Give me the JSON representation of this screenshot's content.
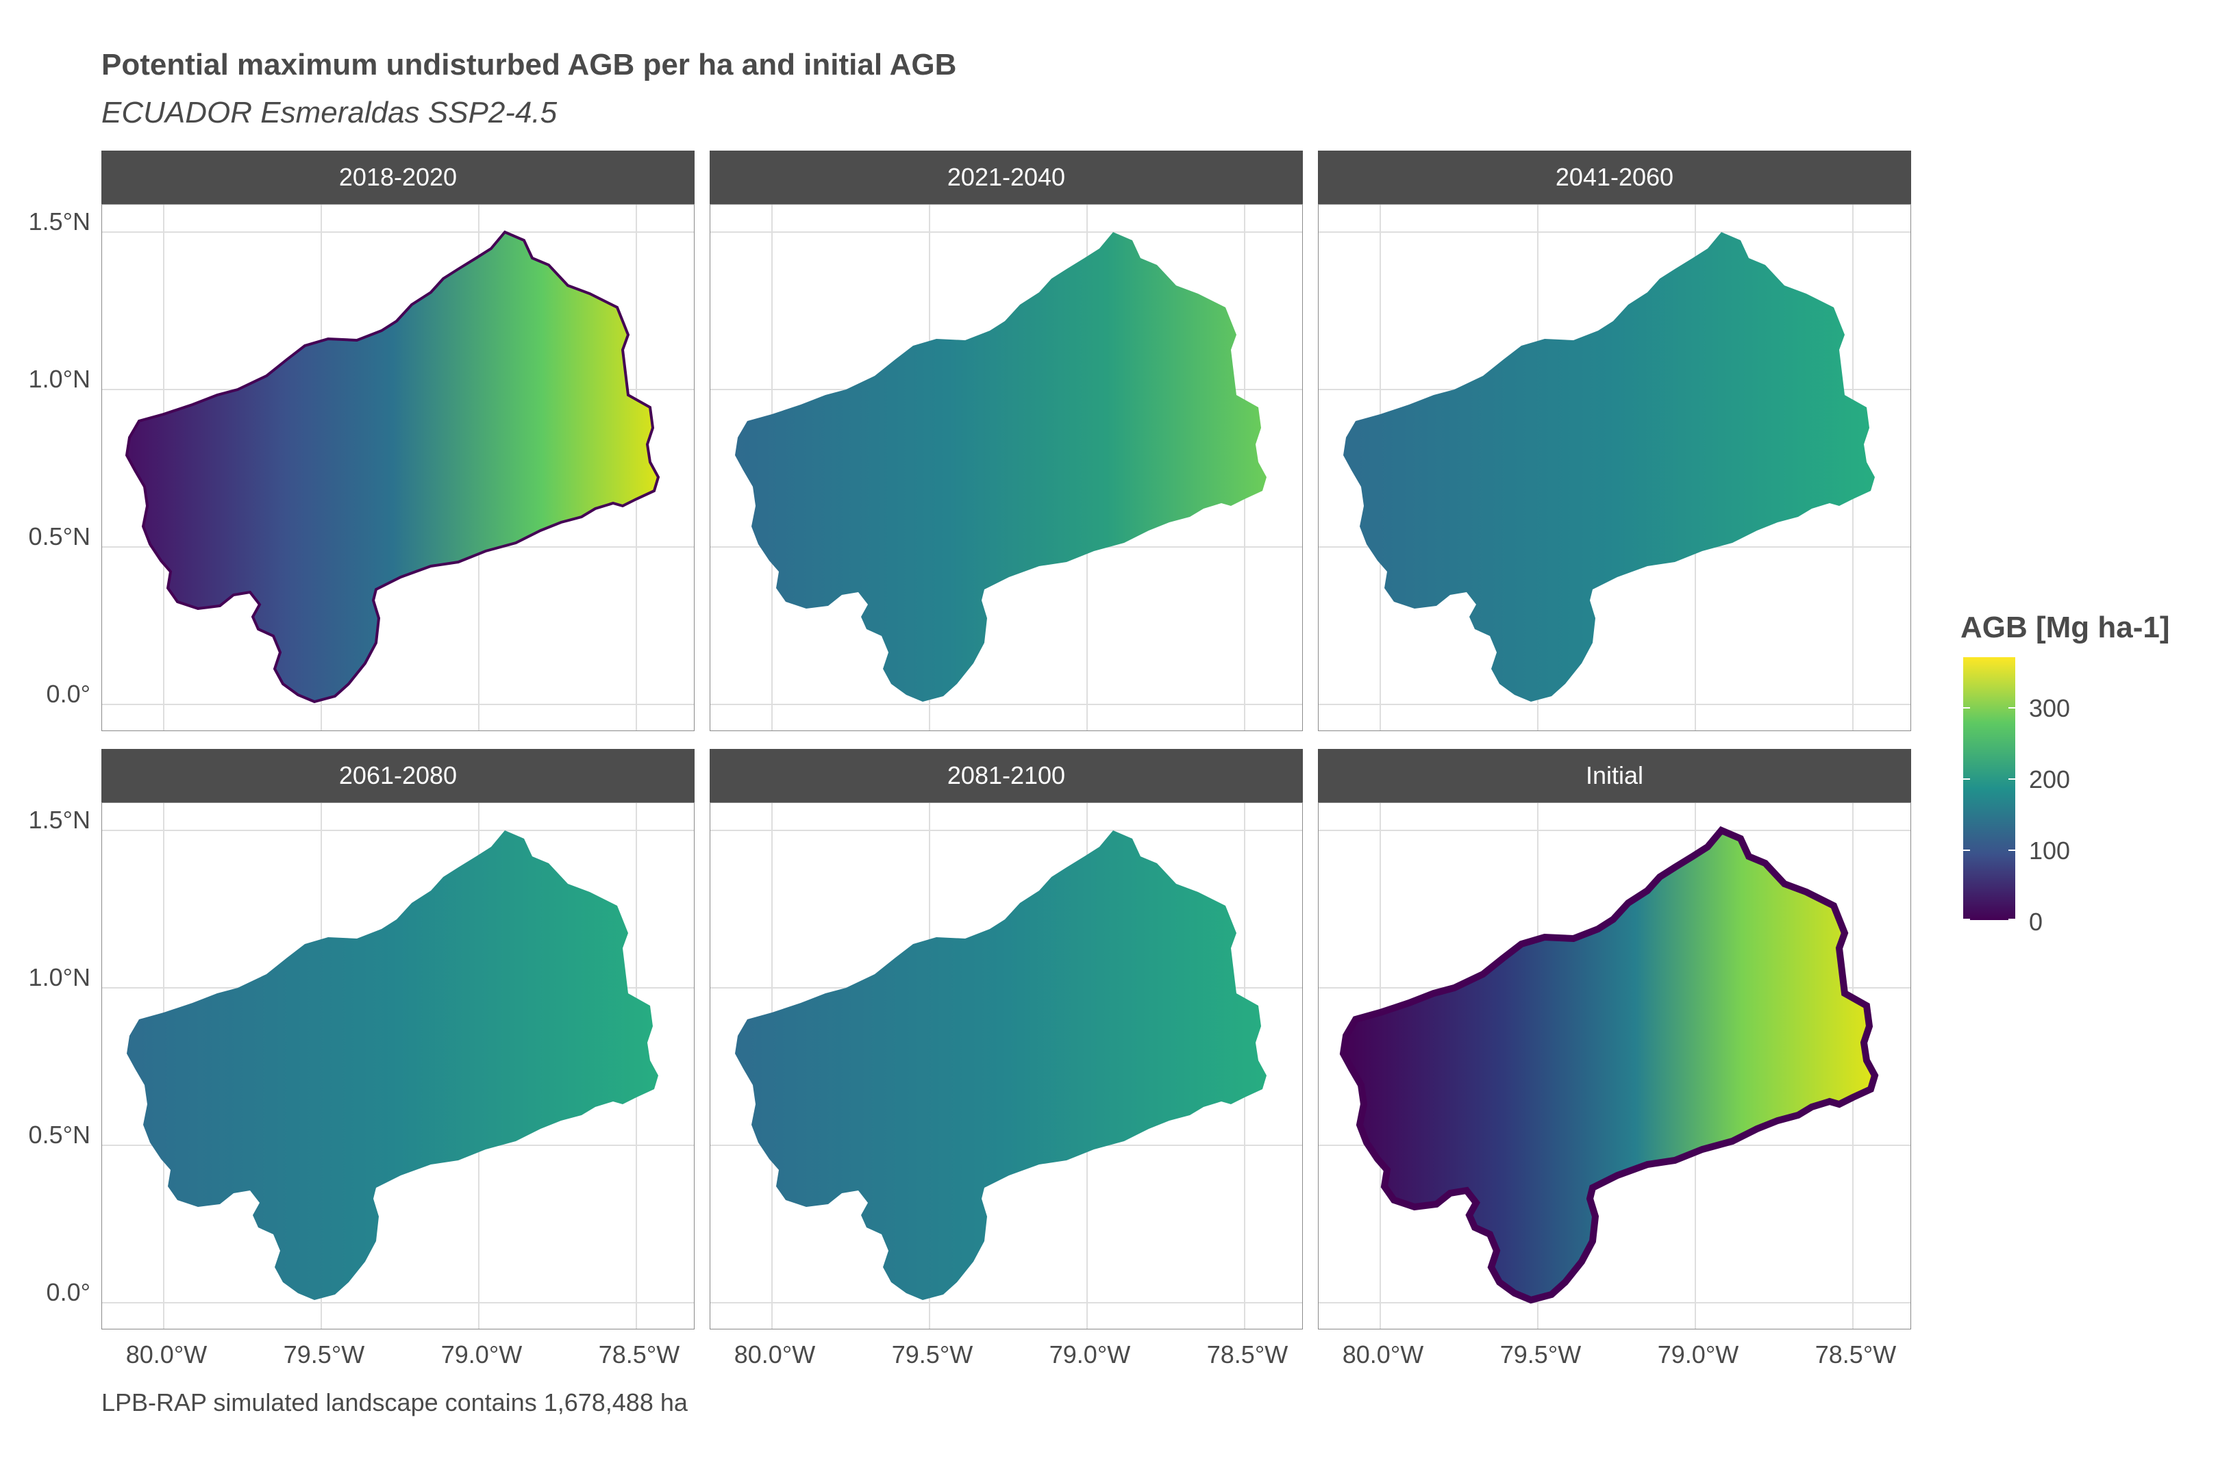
{
  "title": "Potential maximum undisturbed AGB per ha and initial AGB",
  "subtitle": "ECUADOR Esmeraldas SSP2-4.5",
  "caption": "LPB-RAP simulated landscape contains 1,678,488 ha",
  "panels": [
    {
      "label": "2018-2020",
      "scheme": "mixed"
    },
    {
      "label": "2021-2040",
      "scheme": "smooth-high"
    },
    {
      "label": "2041-2060",
      "scheme": "smooth-mid"
    },
    {
      "label": "2061-2080",
      "scheme": "smooth-mid"
    },
    {
      "label": "2081-2100",
      "scheme": "smooth-mid"
    },
    {
      "label": "Initial",
      "scheme": "initial"
    }
  ],
  "axes": {
    "y_ticks": [
      "1.5°N",
      "1.0°N",
      "0.5°N",
      "0.0°"
    ],
    "x_ticks": [
      "80.0°W",
      "79.5°W",
      "79.0°W",
      "78.5°W"
    ]
  },
  "legend": {
    "title": "AGB [Mg ha-1]",
    "ticks": [
      "300",
      "200",
      "100",
      "0"
    ],
    "colors": [
      "#440154",
      "#3b528b",
      "#21918c",
      "#5ec962",
      "#fde725"
    ]
  }
}
